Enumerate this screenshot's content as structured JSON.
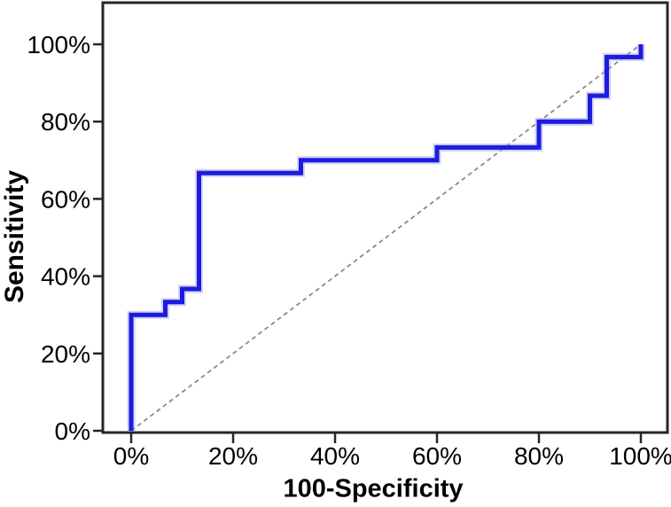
{
  "chart_data": {
    "type": "line",
    "subtype": "roc-curve",
    "title": "",
    "xlabel": "100-Specificity",
    "ylabel": "Sensitivity",
    "xlim": [
      0,
      100
    ],
    "ylim": [
      0,
      100
    ],
    "grid": false,
    "legend": "none",
    "x_ticks": {
      "values": [
        0,
        20,
        40,
        60,
        80,
        100
      ],
      "labels": [
        "0%",
        "20%",
        "40%",
        "60%",
        "80%",
        "100%"
      ]
    },
    "y_ticks": {
      "values": [
        0,
        20,
        40,
        60,
        80,
        100
      ],
      "labels": [
        "0%",
        "20%",
        "40%",
        "60%",
        "80%",
        "100%"
      ]
    },
    "series": [
      {
        "name": "Reference diagonal",
        "type": "line",
        "line_style": "dashed",
        "color": "#8a8a8a",
        "points": [
          [
            0,
            0
          ],
          [
            100,
            100
          ]
        ]
      },
      {
        "name": "ROC curve",
        "type": "step",
        "line_style": "solid",
        "color": "#1c1cdd",
        "halo_color": "#9a9af0",
        "points": [
          [
            0,
            0
          ],
          [
            0,
            30
          ],
          [
            6.7,
            30
          ],
          [
            6.7,
            33.3
          ],
          [
            10,
            33.3
          ],
          [
            10,
            36.7
          ],
          [
            13.3,
            36.7
          ],
          [
            13.3,
            66.7
          ],
          [
            33.3,
            66.7
          ],
          [
            33.3,
            70
          ],
          [
            60,
            70
          ],
          [
            60,
            73.3
          ],
          [
            80,
            73.3
          ],
          [
            80,
            80
          ],
          [
            90,
            80
          ],
          [
            90,
            86.7
          ],
          [
            93.3,
            86.7
          ],
          [
            93.3,
            96.7
          ],
          [
            100,
            96.7
          ],
          [
            100,
            100
          ]
        ]
      }
    ],
    "axis_color": "#262626",
    "text_color": "#000000",
    "background": "#ffffff"
  }
}
